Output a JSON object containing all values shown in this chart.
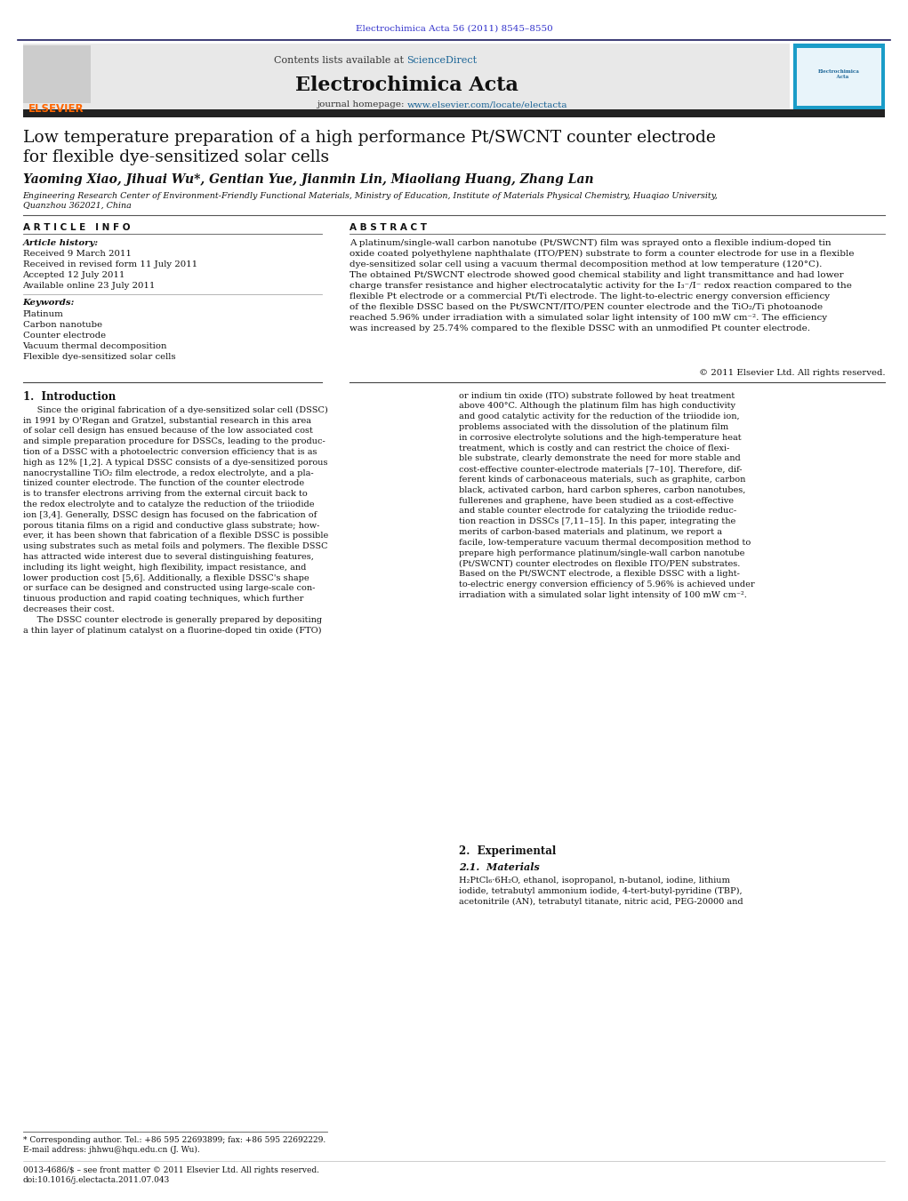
{
  "page_width": 10.21,
  "page_height": 13.51,
  "background_color": "#ffffff",
  "header_citation": "Electrochimica Acta 56 (2011) 8545–8550",
  "header_citation_color": "#3333cc",
  "journal_name": "Electrochimica Acta",
  "contents_text": "Contents lists available at ",
  "sciencedirect_text": "ScienceDirect",
  "sciencedirect_color": "#1a6496",
  "journal_homepage": "journal homepage: ",
  "journal_url": "www.elsevier.com/locate/electacta",
  "journal_url_color": "#1a6496",
  "elsevier_color": "#ff6600",
  "header_bg": "#e8e8e8",
  "dark_bar_color": "#222222",
  "paper_title_line1": "Low temperature preparation of a high performance Pt/SWCNT counter electrode",
  "paper_title_line2": "for flexible dye-sensitized solar cells",
  "authors": "Yaoming Xiao, Jihuai Wu*, Gentian Yue, Jianmin Lin, Miaoliang Huang, Zhang Lan",
  "affiliation_line1": "Engineering Research Center of Environment-Friendly Functional Materials, Ministry of Education, Institute of Materials Physical Chemistry, Huaqiao University,",
  "affiliation_line2": "Quanzhou 362021, China",
  "article_info_title": "A R T I C L E   I N F O",
  "abstract_title": "A B S T R A C T",
  "article_history_label": "Article history:",
  "received1": "Received 9 March 2011",
  "received2": "Received in revised form 11 July 2011",
  "accepted": "Accepted 12 July 2011",
  "available": "Available online 23 July 2011",
  "keywords_label": "Keywords:",
  "keywords": [
    "Platinum",
    "Carbon nanotube",
    "Counter electrode",
    "Vacuum thermal decomposition",
    "Flexible dye-sensitized solar cells"
  ],
  "abstract_text": "A platinum/single-wall carbon nanotube (Pt/SWCNT) film was sprayed onto a flexible indium-doped tin\noxide coated polyethylene naphthalate (ITO/PEN) substrate to form a counter electrode for use in a flexible\ndye-sensitized solar cell using a vacuum thermal decomposition method at low temperature (120°C).\nThe obtained Pt/SWCNT electrode showed good chemical stability and light transmittance and had lower\ncharge transfer resistance and higher electrocatalytic activity for the I₃⁻/I⁻ redox reaction compared to the\nflexible Pt electrode or a commercial Pt/Ti electrode. The light-to-electric energy conversion efficiency\nof the flexible DSSC based on the Pt/SWCNT/ITO/PEN counter electrode and the TiO₂/Ti photoanode\nreached 5.96% under irradiation with a simulated solar light intensity of 100 mW cm⁻². The efficiency\nwas increased by 25.74% compared to the flexible DSSC with an unmodified Pt counter electrode.",
  "copyright": "© 2011 Elsevier Ltd. All rights reserved.",
  "intro_title": "1.  Introduction",
  "intro_left": "     Since the original fabrication of a dye-sensitized solar cell (DSSC)\nin 1991 by O'Regan and Gratzel, substantial research in this area\nof solar cell design has ensued because of the low associated cost\nand simple preparation procedure for DSSCs, leading to the produc-\ntion of a DSSC with a photoelectric conversion efficiency that is as\nhigh as 12% [1,2]. A typical DSSC consists of a dye-sensitized porous\nnanocrystalline TiO₂ film electrode, a redox electrolyte, and a pla-\ntinized counter electrode. The function of the counter electrode\nis to transfer electrons arriving from the external circuit back to\nthe redox electrolyte and to catalyze the reduction of the triiodide\nion [3,4]. Generally, DSSC design has focused on the fabrication of\nporous titania films on a rigid and conductive glass substrate; how-\never, it has been shown that fabrication of a flexible DSSC is possible\nusing substrates such as metal foils and polymers. The flexible DSSC\nhas attracted wide interest due to several distinguishing features,\nincluding its light weight, high flexibility, impact resistance, and\nlower production cost [5,6]. Additionally, a flexible DSSC's shape\nor surface can be designed and constructed using large-scale con-\ntinuous production and rapid coating techniques, which further\ndecreases their cost.\n     The DSSC counter electrode is generally prepared by depositing\na thin layer of platinum catalyst on a fluorine-doped tin oxide (FTO)",
  "intro_right": "or indium tin oxide (ITO) substrate followed by heat treatment\nabove 400°C. Although the platinum film has high conductivity\nand good catalytic activity for the reduction of the triiodide ion,\nproblems associated with the dissolution of the platinum film\nin corrosive electrolyte solutions and the high-temperature heat\ntreatment, which is costly and can restrict the choice of flexi-\nble substrate, clearly demonstrate the need for more stable and\ncost-effective counter-electrode materials [7–10]. Therefore, dif-\nferent kinds of carbonaceous materials, such as graphite, carbon\nblack, activated carbon, hard carbon spheres, carbon nanotubes,\nfullerenes and graphene, have been studied as a cost-effective\nand stable counter electrode for catalyzing the triiodide reduc-\ntion reaction in DSSCs [7,11–15]. In this paper, integrating the\nmerits of carbon-based materials and platinum, we report a\nfacile, low-temperature vacuum thermal decomposition method to\nprepare high performance platinum/single-wall carbon nanotube\n(Pt/SWCNT) counter electrodes on flexible ITO/PEN substrates.\nBased on the Pt/SWCNT electrode, a flexible DSSC with a light-\nto-electric energy conversion efficiency of 5.96% is achieved under\nirradiation with a simulated solar light intensity of 100 mW cm⁻².",
  "section2_title": "2.  Experimental",
  "section21_title": "2.1.  Materials",
  "section21_text": "H₂PtCl₆·6H₂O, ethanol, isopropanol, n-butanol, iodine, lithium\niodide, tetrabutyl ammonium iodide, 4-tert-butyl-pyridine (TBP),\nacetonitrile (AN), tetrabutyl titanate, nitric acid, PEG-20000 and",
  "footnote_star": "* Corresponding author. Tel.: +86 595 22693899; fax: +86 595 22692229.",
  "footnote_email": "E-mail address: jhhwu@hqu.edu.cn (J. Wu).",
  "footnote_issn": "0013-4686/$ – see front matter © 2011 Elsevier Ltd. All rights reserved.",
  "footnote_doi": "doi:10.1016/j.electacta.2011.07.043"
}
